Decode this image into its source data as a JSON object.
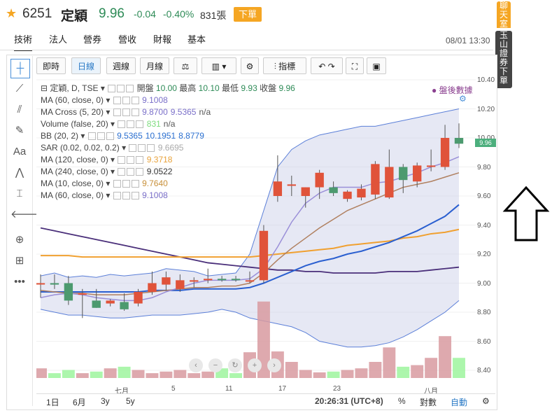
{
  "header": {
    "code": "6251",
    "name": "定穎",
    "price": "9.96",
    "change": "-0.04",
    "percent": "-0.40%",
    "volume": "831張",
    "order_label": "下單"
  },
  "nav": {
    "items": [
      "技術",
      "法人",
      "營券",
      "營收",
      "財報",
      "基本"
    ],
    "active": "技術",
    "datetime": "08/01 13:30"
  },
  "side_buttons": {
    "chatroom": [
      "聊",
      "天",
      "室"
    ],
    "esun_order": [
      "玉",
      "山",
      "證",
      "券",
      "下",
      "單"
    ]
  },
  "toolbar": {
    "intraday": "即時",
    "daily": "日線",
    "weekly": "週線",
    "monthly": "月線",
    "indicators": "指標"
  },
  "legend": {
    "main": [
      "定穎, D, TSE",
      "開盤",
      "10.00",
      "最高",
      "10.10",
      "最低",
      "9.93",
      "收盤",
      "9.96"
    ],
    "rows": [
      {
        "label": "MA (60, close, 0)",
        "values": [
          "9.1008"
        ],
        "color": "#7a6fc9"
      },
      {
        "label": "MA Cross (5, 20)",
        "values": [
          "9.8700",
          "9.5365",
          "n/a"
        ],
        "color": "#7a6fc9"
      },
      {
        "label": "Volume (false, 20)",
        "values": [
          "831",
          "n/a"
        ],
        "color": "#7cdc7c"
      },
      {
        "label": "BB (20, 2)",
        "values": [
          "9.5365",
          "10.1951",
          "8.8779"
        ],
        "color": "#2a6fd0"
      },
      {
        "label": "SAR (0.02, 0.02, 0.2)",
        "values": [
          "9.6695"
        ],
        "color": "#aaa"
      },
      {
        "label": "MA (120, close, 0)",
        "values": [
          "9.3718"
        ],
        "color": "#e8a23a"
      },
      {
        "label": "MA (240, close, 0)",
        "values": [
          "9.0522"
        ],
        "color": "#333"
      },
      {
        "label": "MA (10, close, 0)",
        "values": [
          "9.7640"
        ],
        "color": "#c8903a"
      },
      {
        "label": "MA (60, close, 0)",
        "values": [
          "9.1008"
        ],
        "color": "#7a6fc9"
      }
    ]
  },
  "after_hours": "盤後數據",
  "y_axis": [
    "10.40",
    "10.20",
    "10.00",
    "9.80",
    "9.60",
    "9.40",
    "9.20",
    "9.00",
    "8.80",
    "8.60",
    "8.40"
  ],
  "y_last": "9.96",
  "x_axis": [
    "七月",
    "5",
    "11",
    "17",
    "23",
    "八月"
  ],
  "bottom": {
    "ranges": [
      "1日",
      "6月",
      "3y",
      "5y"
    ],
    "time": "20:26:31 (UTC+8)",
    "percent": "%",
    "log": "對數",
    "auto": "自動"
  },
  "chart_data": {
    "type": "candlestick",
    "ylim": [
      8.3,
      10.45
    ],
    "candles": [
      {
        "o": 9.0,
        "h": 9.06,
        "l": 8.9,
        "c": 9.0
      },
      {
        "o": 9.0,
        "h": 9.06,
        "l": 8.96,
        "c": 8.99
      },
      {
        "o": 9.0,
        "h": 9.05,
        "l": 8.85,
        "c": 8.88
      },
      {
        "o": 8.93,
        "h": 8.96,
        "l": 8.76,
        "c": 8.93
      },
      {
        "o": 8.88,
        "h": 8.96,
        "l": 8.83,
        "c": 8.83
      },
      {
        "o": 8.86,
        "h": 8.89,
        "l": 8.84,
        "c": 8.88
      },
      {
        "o": 8.87,
        "h": 8.93,
        "l": 8.81,
        "c": 8.82
      },
      {
        "o": 8.86,
        "h": 8.96,
        "l": 8.84,
        "c": 8.94
      },
      {
        "o": 8.94,
        "h": 9.08,
        "l": 8.92,
        "c": 9.0
      },
      {
        "o": 8.99,
        "h": 9.08,
        "l": 8.95,
        "c": 9.04
      },
      {
        "o": 8.96,
        "h": 9.06,
        "l": 8.94,
        "c": 9.02
      },
      {
        "o": 9.01,
        "h": 9.04,
        "l": 8.97,
        "c": 9.02
      },
      {
        "o": 9.02,
        "h": 9.1,
        "l": 9.0,
        "c": 9.03
      },
      {
        "o": 9.03,
        "h": 9.05,
        "l": 9.01,
        "c": 9.02
      },
      {
        "o": 9.03,
        "h": 9.05,
        "l": 9.01,
        "c": 9.02
      },
      {
        "o": 9.02,
        "h": 9.08,
        "l": 9.0,
        "c": 9.02
      },
      {
        "o": 9.02,
        "h": 9.4,
        "l": 9.0,
        "c": 9.36
      },
      {
        "o": 9.6,
        "h": 9.88,
        "l": 9.56,
        "c": 9.7
      },
      {
        "o": 9.67,
        "h": 9.74,
        "l": 9.6,
        "c": 9.68
      },
      {
        "o": 9.6,
        "h": 9.66,
        "l": 9.52,
        "c": 9.66
      },
      {
        "o": 9.66,
        "h": 9.78,
        "l": 9.58,
        "c": 9.76
      },
      {
        "o": 9.66,
        "h": 9.7,
        "l": 9.6,
        "c": 9.62
      },
      {
        "o": 9.58,
        "h": 9.64,
        "l": 9.56,
        "c": 9.63
      },
      {
        "o": 9.59,
        "h": 9.68,
        "l": 9.57,
        "c": 9.65
      },
      {
        "o": 9.61,
        "h": 9.84,
        "l": 9.58,
        "c": 9.82
      },
      {
        "o": 9.59,
        "h": 9.92,
        "l": 9.58,
        "c": 9.8
      },
      {
        "o": 9.8,
        "h": 9.82,
        "l": 9.62,
        "c": 9.71
      },
      {
        "o": 9.7,
        "h": 9.83,
        "l": 9.66,
        "c": 9.81
      },
      {
        "o": 9.8,
        "h": 9.92,
        "l": 9.77,
        "c": 9.81
      },
      {
        "o": 9.8,
        "h": 10.09,
        "l": 9.78,
        "c": 10.0
      },
      {
        "o": 10.0,
        "h": 10.1,
        "l": 9.93,
        "c": 9.96
      }
    ],
    "volume_relative": [
      0.12,
      0.06,
      0.1,
      0.06,
      0.08,
      0.12,
      0.14,
      0.1,
      0.06,
      0.08,
      0.1,
      0.06,
      0.08,
      0.12,
      0.06,
      0.32,
      0.95,
      0.33,
      0.2,
      0.1,
      0.07,
      0.08,
      0.1,
      0.12,
      0.2,
      0.38,
      0.14,
      0.16,
      0.25,
      0.52,
      0.25
    ],
    "bb_upper": [
      9.05,
      9.07,
      9.04,
      9.05,
      9.04,
      9.06,
      9.05,
      9.06,
      9.07,
      9.1,
      9.09,
      9.08,
      9.05,
      9.06,
      9.07,
      9.2,
      9.5,
      9.8,
      9.92,
      9.98,
      10.02,
      10.04,
      10.06,
      10.08,
      10.08,
      10.1,
      10.12,
      10.14,
      10.16,
      10.18,
      10.2
    ],
    "bb_lower": [
      8.82,
      8.8,
      8.78,
      8.78,
      8.77,
      8.76,
      8.76,
      8.77,
      8.78,
      8.78,
      8.78,
      8.79,
      8.8,
      8.82,
      8.8,
      8.76,
      8.74,
      8.72,
      8.7,
      8.66,
      8.6,
      8.58,
      8.56,
      8.56,
      8.57,
      8.59,
      8.63,
      8.68,
      8.74,
      8.8,
      8.88
    ],
    "ma_purple": [
      9.38,
      9.36,
      9.34,
      9.32,
      9.3,
      9.28,
      9.26,
      9.24,
      9.22,
      9.2,
      9.18,
      9.16,
      9.14,
      9.13,
      9.12,
      9.11,
      9.1,
      9.09,
      9.09,
      9.08,
      9.08,
      9.07,
      9.07,
      9.07,
      9.07,
      9.08,
      9.08,
      9.08,
      9.09,
      9.1,
      9.11
    ],
    "ma_orange": [
      9.19,
      9.19,
      9.19,
      9.18,
      9.18,
      9.18,
      9.18,
      9.18,
      9.18,
      9.18,
      9.18,
      9.18,
      9.18,
      9.18,
      9.18,
      9.18,
      9.19,
      9.2,
      9.21,
      9.22,
      9.23,
      9.24,
      9.26,
      9.27,
      9.28,
      9.29,
      9.31,
      9.32,
      9.34,
      9.35,
      9.37
    ],
    "ma_blue": [
      8.94,
      8.94,
      8.94,
      8.94,
      8.94,
      8.94,
      8.94,
      8.94,
      8.95,
      8.95,
      8.95,
      8.96,
      8.96,
      8.96,
      8.96,
      8.97,
      9.0,
      9.04,
      9.08,
      9.12,
      9.15,
      9.17,
      9.2,
      9.22,
      9.25,
      9.28,
      9.32,
      9.36,
      9.41,
      9.46,
      9.54
    ],
    "ma_brown": [
      8.95,
      8.94,
      8.93,
      8.93,
      8.92,
      8.92,
      8.92,
      8.93,
      8.94,
      8.95,
      8.96,
      8.97,
      8.97,
      8.98,
      8.98,
      9.0,
      9.07,
      9.16,
      9.24,
      9.31,
      9.38,
      9.44,
      9.5,
      9.54,
      9.58,
      9.62,
      9.66,
      9.68,
      9.7,
      9.73,
      9.76
    ],
    "ma_cross": [
      8.9,
      8.92,
      8.93,
      8.92,
      8.9,
      8.89,
      8.88,
      8.88,
      8.9,
      8.94,
      8.97,
      9.0,
      9.02,
      9.02,
      9.02,
      9.03,
      9.1,
      9.25,
      9.42,
      9.55,
      9.62,
      9.66,
      9.66,
      9.66,
      9.69,
      9.7,
      9.73,
      9.76,
      9.8,
      9.83,
      9.87
    ],
    "colors": {
      "up": "#e0533a",
      "down": "#4c9a6f",
      "vol_up": "#d89aa0",
      "vol_down": "#9ef59e",
      "bb_fill": "#c7cbe6"
    }
  }
}
